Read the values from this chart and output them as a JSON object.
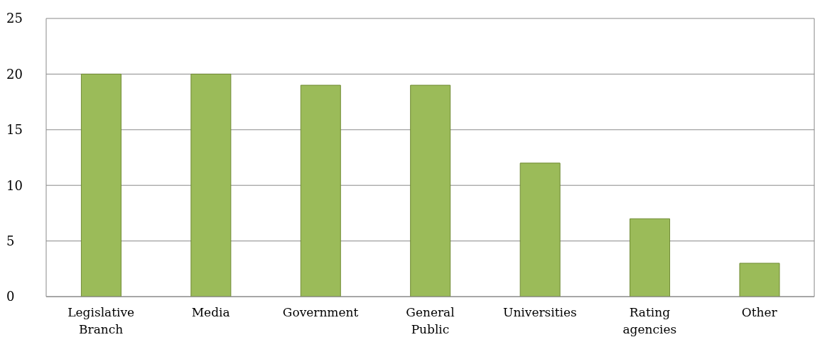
{
  "chart_data": {
    "type": "bar",
    "categories": [
      "Legislative Branch",
      "Media",
      "Government",
      "General Public",
      "Universities",
      "Rating agencies",
      "Other"
    ],
    "values": [
      20,
      20,
      19,
      19,
      12,
      7,
      3
    ],
    "color": "#9bbb59",
    "ylim": [
      0,
      25
    ],
    "yticks": [
      0,
      5,
      10,
      15,
      20,
      25
    ],
    "grid": "y"
  }
}
